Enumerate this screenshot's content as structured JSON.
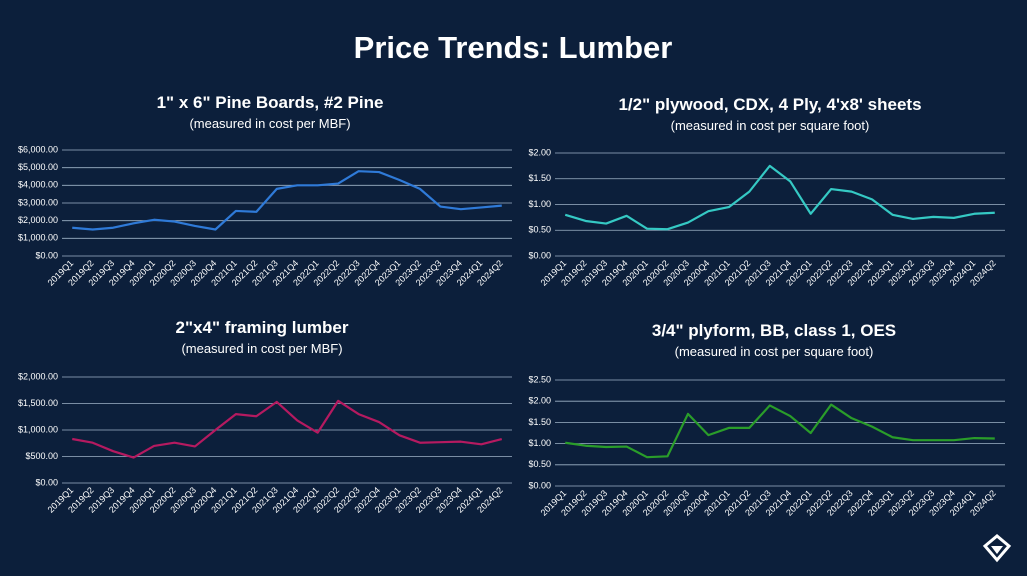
{
  "title": "Price Trends: Lumber",
  "chart_data": [
    {
      "type": "line",
      "title": "1\" x 6\" Pine Boards, #2 Pine",
      "subtitle": "(measured in cost per MBF)",
      "categories": [
        "2019Q1",
        "2019Q2",
        "2019Q3",
        "2019Q4",
        "2020Q1",
        "2020Q2",
        "2020Q3",
        "2020Q4",
        "2021Q1",
        "2021Q2",
        "2021Q3",
        "2021Q4",
        "2022Q1",
        "2022Q2",
        "2022Q3",
        "2022Q4",
        "2023Q1",
        "2023Q2",
        "2023Q3",
        "2023Q4",
        "2024Q1",
        "2024Q2"
      ],
      "values": [
        1600,
        1500,
        1600,
        1850,
        2050,
        1950,
        1700,
        1500,
        2550,
        2500,
        3800,
        4000,
        4000,
        4100,
        4800,
        4750,
        4300,
        3800,
        2800,
        2650,
        2750,
        2850
      ],
      "color": "#2f7ad8",
      "ylim": [
        0,
        6000
      ],
      "yticks": [
        {
          "value": 0,
          "label": "$0.00"
        },
        {
          "value": 1000,
          "label": "$1,000.00"
        },
        {
          "value": 2000,
          "label": "$2,000.00"
        },
        {
          "value": 3000,
          "label": "$3,000.00"
        },
        {
          "value": 4000,
          "label": "$4,000.00"
        },
        {
          "value": 5000,
          "label": "$5,000.00"
        },
        {
          "value": 6000,
          "label": "$6,000.00"
        }
      ],
      "grid": true
    },
    {
      "type": "line",
      "title": "1/2\" plywood, CDX, 4 Ply, 4'x8' sheets",
      "subtitle": "(measured in cost per square foot)",
      "categories": [
        "2019Q1",
        "2019Q2",
        "2019Q3",
        "2019Q4",
        "2020Q1",
        "2020Q2",
        "2020Q3",
        "2020Q4",
        "2021Q1",
        "2021Q2",
        "2021Q3",
        "2021Q4",
        "2022Q1",
        "2022Q2",
        "2022Q3",
        "2022Q4",
        "2023Q1",
        "2023Q2",
        "2023Q3",
        "2023Q4",
        "2024Q1",
        "2024Q2"
      ],
      "values": [
        0.8,
        0.68,
        0.63,
        0.78,
        0.53,
        0.52,
        0.65,
        0.87,
        0.95,
        1.25,
        1.75,
        1.45,
        0.82,
        1.3,
        1.25,
        1.1,
        0.8,
        0.72,
        0.76,
        0.74,
        0.82,
        0.84
      ],
      "color": "#35c9c4",
      "ylim": [
        0,
        2
      ],
      "yticks": [
        {
          "value": 0,
          "label": "$0.00"
        },
        {
          "value": 0.5,
          "label": "$0.50"
        },
        {
          "value": 1,
          "label": "$1.00"
        },
        {
          "value": 1.5,
          "label": "$1.50"
        },
        {
          "value": 2,
          "label": "$2.00"
        }
      ],
      "grid": true
    },
    {
      "type": "line",
      "title": "2\"x4\" framing lumber",
      "subtitle": "(measured in cost per MBF)",
      "categories": [
        "2019Q1",
        "2019Q2",
        "2019Q3",
        "2019Q4",
        "2020Q1",
        "2020Q2",
        "2020Q3",
        "2020Q4",
        "2021Q1",
        "2021Q2",
        "2021Q3",
        "2021Q4",
        "2022Q1",
        "2022Q2",
        "2022Q3",
        "2022Q4",
        "2023Q1",
        "2023Q2",
        "2023Q3",
        "2023Q4",
        "2024Q1",
        "2024Q2"
      ],
      "values": [
        830,
        760,
        600,
        480,
        700,
        760,
        690,
        1000,
        1300,
        1260,
        1530,
        1180,
        950,
        1550,
        1300,
        1150,
        900,
        760,
        770,
        780,
        730,
        830
      ],
      "color": "#b51a60",
      "ylim": [
        0,
        2000
      ],
      "yticks": [
        {
          "value": 0,
          "label": "$0.00"
        },
        {
          "value": 500,
          "label": "$500.00"
        },
        {
          "value": 1000,
          "label": "$1,000.00"
        },
        {
          "value": 1500,
          "label": "$1,500.00"
        },
        {
          "value": 2000,
          "label": "$2,000.00"
        }
      ],
      "grid": true
    },
    {
      "type": "line",
      "title": "3/4\" plyform, BB, class 1, OES",
      "subtitle": "(measured in cost per square foot)",
      "categories": [
        "2019Q1",
        "2019Q2",
        "2019Q3",
        "2019Q4",
        "2020Q1",
        "2020Q2",
        "2020Q3",
        "2020Q4",
        "2021Q1",
        "2021Q2",
        "2021Q3",
        "2021Q4",
        "2022Q1",
        "2022Q2",
        "2022Q3",
        "2022Q4",
        "2023Q1",
        "2023Q2",
        "2023Q3",
        "2023Q4",
        "2024Q1",
        "2024Q2"
      ],
      "values": [
        1.02,
        0.95,
        0.92,
        0.93,
        0.68,
        0.7,
        1.7,
        1.2,
        1.37,
        1.37,
        1.9,
        1.65,
        1.25,
        1.92,
        1.6,
        1.4,
        1.15,
        1.08,
        1.08,
        1.08,
        1.13,
        1.12
      ],
      "color": "#2a9d2a",
      "ylim": [
        0,
        2.5
      ],
      "yticks": [
        {
          "value": 0,
          "label": "$0.00"
        },
        {
          "value": 0.5,
          "label": "$0.50"
        },
        {
          "value": 1,
          "label": "$1.00"
        },
        {
          "value": 1.5,
          "label": "$1.50"
        },
        {
          "value": 2,
          "label": "$2.00"
        },
        {
          "value": 2.5,
          "label": "$2.50"
        }
      ],
      "grid": true
    }
  ]
}
